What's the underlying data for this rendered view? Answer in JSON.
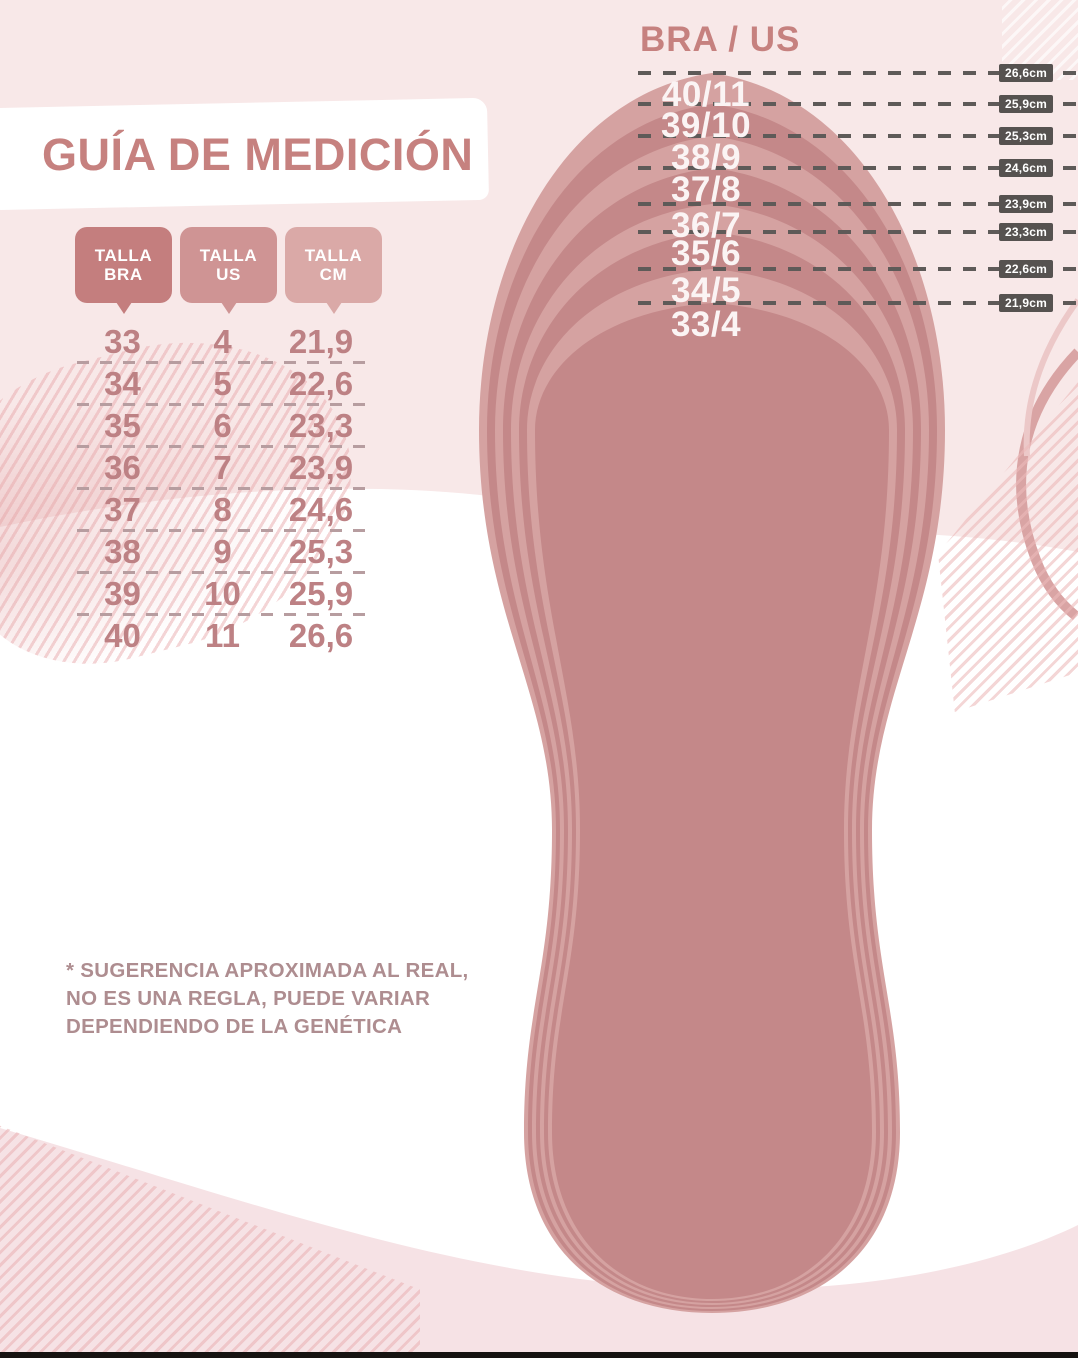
{
  "title": "GUÍA DE MEDICIÓN",
  "table": {
    "headers": [
      {
        "line1": "TALLA",
        "line2": "BRA"
      },
      {
        "line1": "TALLA",
        "line2": "US"
      },
      {
        "line1": "TALLA",
        "line2": "CM"
      }
    ],
    "rows": [
      {
        "bra": "33",
        "us": "4",
        "cm": "21,9"
      },
      {
        "bra": "34",
        "us": "5",
        "cm": "22,6"
      },
      {
        "bra": "35",
        "us": "6",
        "cm": "23,3"
      },
      {
        "bra": "36",
        "us": "7",
        "cm": "23,9"
      },
      {
        "bra": "37",
        "us": "8",
        "cm": "24,6"
      },
      {
        "bra": "38",
        "us": "9",
        "cm": "25,3"
      },
      {
        "bra": "39",
        "us": "10",
        "cm": "25,9"
      },
      {
        "bra": "40",
        "us": "11",
        "cm": "26,6"
      }
    ]
  },
  "diagram": {
    "heading": "BRA / US",
    "measurements": [
      {
        "size": "40/11",
        "cm": "26,6cm"
      },
      {
        "size": "39/10",
        "cm": "25,9cm"
      },
      {
        "size": "38/9",
        "cm": "25,3cm"
      },
      {
        "size": "37/8",
        "cm": "24,6cm"
      },
      {
        "size": "36/7",
        "cm": "23,9cm"
      },
      {
        "size": "35/6",
        "cm": "23,3cm"
      },
      {
        "size": "34/5",
        "cm": "22,6cm"
      },
      {
        "size": "33/4",
        "cm": "21,9cm"
      }
    ]
  },
  "disclaimer": {
    "line1": "* SUGERENCIA APROXIMADA AL REAL,",
    "line2": "NO ES UNA REGLA, PUEDE VARIAR",
    "line3": "DEPENDIENDO DE LA GENÉTICA"
  },
  "colors": {
    "accent": "#c6817f",
    "bg_pink": "#f8e8e8",
    "bubble1": "#c47e7e",
    "bubble2": "#cf9494",
    "bubble3": "#daa9a7",
    "table_text": "#bd8184",
    "sep": "#b79da0",
    "dash": "#5e5a58",
    "badge_bg": "#565250",
    "disclaimer": "#ae8d90",
    "ring_light": "#d5a2a1",
    "ring_dark": "#c48889",
    "wave_white": "#ffffff",
    "wave_bottom": "#f6e2e5"
  }
}
